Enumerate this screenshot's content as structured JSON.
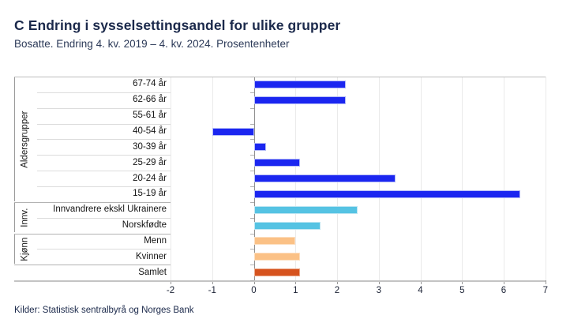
{
  "header": {
    "title": "C Endring i sysselsettingsandel for ulike grupper",
    "subtitle": "Bosatte. Endring 4. kv. 2019 – 4. kv. 2024. Prosentenheter"
  },
  "footer": {
    "source": "Kilder: Statistisk sentralbyrå og Norges Bank"
  },
  "chart_data": {
    "type": "bar",
    "orientation": "horizontal",
    "title": "C Endring i sysselsettingsandel for ulike grupper",
    "subtitle": "Bosatte. Endring 4. kv. 2019 – 4. kv. 2024. Prosentenheter",
    "xlabel": "",
    "ylabel": "",
    "xlim": [
      -2,
      7
    ],
    "xticks": [
      -2,
      -1,
      0,
      1,
      2,
      3,
      4,
      5,
      6,
      7
    ],
    "grid": "vertical-on",
    "legend": "none",
    "palette": {
      "blue": {
        "fill": "#1b26f0",
        "edge": "#b3baf7"
      },
      "cyan": {
        "fill": "#55c3e3",
        "edge": "#bfe6f2"
      },
      "light_orange": {
        "fill": "#fbc186",
        "edge": "#fddfc0"
      },
      "dark_orange": {
        "fill": "#d6531e",
        "edge": "#eba98b"
      }
    },
    "groups": [
      {
        "label": "Aldersgrupper",
        "rows": [
          {
            "label": "67-74 år",
            "value": 2.2,
            "color": "blue"
          },
          {
            "label": "62-66 år",
            "value": 2.2,
            "color": "blue"
          },
          {
            "label": "55-61 år",
            "value": 0.0,
            "color": "blue"
          },
          {
            "label": "40-54 år",
            "value": -1.0,
            "color": "blue"
          },
          {
            "label": "30-39 år",
            "value": 0.3,
            "color": "blue"
          },
          {
            "label": "25-29 år",
            "value": 1.1,
            "color": "blue"
          },
          {
            "label": "20-24 år",
            "value": 3.4,
            "color": "blue"
          },
          {
            "label": "15-19 år",
            "value": 6.4,
            "color": "blue"
          }
        ]
      },
      {
        "label": "Innv.",
        "rows": [
          {
            "label": "Innvandrere ekskl Ukrainere",
            "value": 2.5,
            "color": "cyan"
          },
          {
            "label": "Norskfødte",
            "value": 1.6,
            "color": "cyan"
          }
        ]
      },
      {
        "label": "Kjønn",
        "rows": [
          {
            "label": "Menn",
            "value": 1.0,
            "color": "light_orange"
          },
          {
            "label": "Kvinner",
            "value": 1.1,
            "color": "light_orange"
          }
        ]
      },
      {
        "label": "",
        "rows": [
          {
            "label": "Samlet",
            "value": 1.1,
            "color": "dark_orange"
          }
        ]
      }
    ]
  }
}
